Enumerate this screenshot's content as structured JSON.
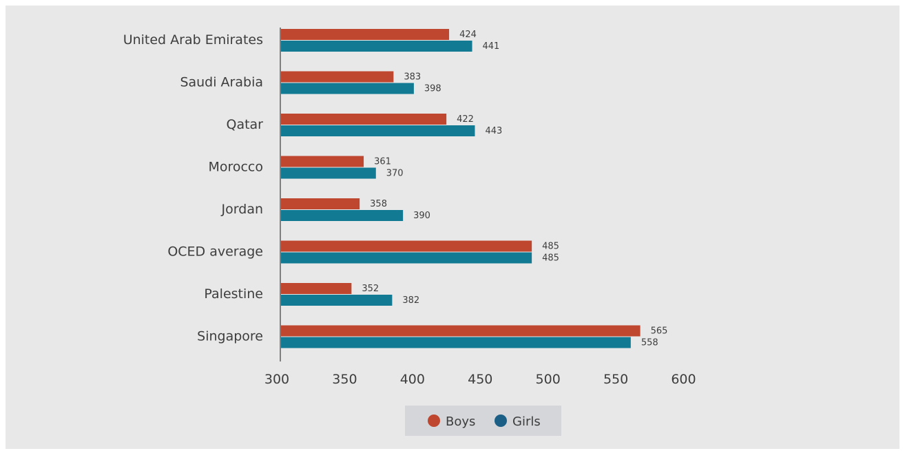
{
  "chart_data": {
    "type": "bar",
    "orientation": "horizontal",
    "categories": [
      "United Arab Emirates",
      "Saudi Arabia",
      "Qatar",
      "Morocco",
      "Jordan",
      "OCED average",
      "Palestine",
      "Singapore"
    ],
    "series": [
      {
        "name": "Boys",
        "values": [
          424,
          383,
          422,
          361,
          358,
          485,
          352,
          565
        ],
        "color": "#c0472f"
      },
      {
        "name": "Girls",
        "values": [
          441,
          398,
          443,
          370,
          390,
          485,
          382,
          558
        ],
        "color": "#137a93"
      }
    ],
    "xlim": [
      300,
      600
    ],
    "xticks": [
      "300",
      "350",
      "400",
      "450",
      "500",
      "550",
      "600"
    ],
    "xlabel": "",
    "ylabel": "",
    "title": "",
    "legend_position": "bottom-center",
    "grid": false,
    "data_labels": true,
    "background": "#e8e8e8",
    "legend_marker_colors": [
      "#c0472f",
      "#1b5f86"
    ]
  }
}
